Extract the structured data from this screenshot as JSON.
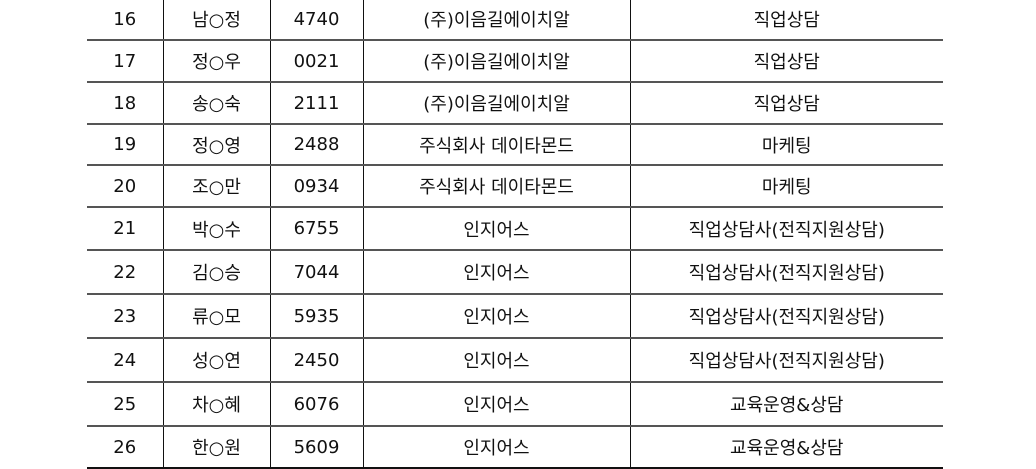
{
  "rows": [
    [
      "16",
      "남○정",
      "4740",
      "(주)이음길에이치알",
      "직업상담"
    ],
    [
      "17",
      "정○우",
      "0021",
      "(주)이음길에이치알",
      "직업상담"
    ],
    [
      "18",
      "송○숙",
      "2111",
      "(주)이음길에이치알",
      "직업상담"
    ],
    [
      "19",
      "정○영",
      "2488",
      "주식회사 데이타몬드",
      "마케팅"
    ],
    [
      "20",
      "조○만",
      "0934",
      "주식회사 데이타몬드",
      "마케팅"
    ],
    [
      "21",
      "박○수",
      "6755",
      "인지어스",
      "직업상담사(전직지원상담)"
    ],
    [
      "22",
      "김○승",
      "7044",
      "인지어스",
      "직업상담사(전직지원상담)"
    ],
    [
      "23",
      "류○모",
      "5935",
      "인지어스",
      "직업상담사(전직지원상담)"
    ],
    [
      "24",
      "성○연",
      "2450",
      "인지어스",
      "직업상담사(전직지원상담)"
    ],
    [
      "25",
      "차○혜",
      "6076",
      "인지어스",
      "교육운영&상담"
    ],
    [
      "26",
      "한○원",
      "5609",
      "인지어스",
      "교육운영&상담"
    ]
  ]
}
